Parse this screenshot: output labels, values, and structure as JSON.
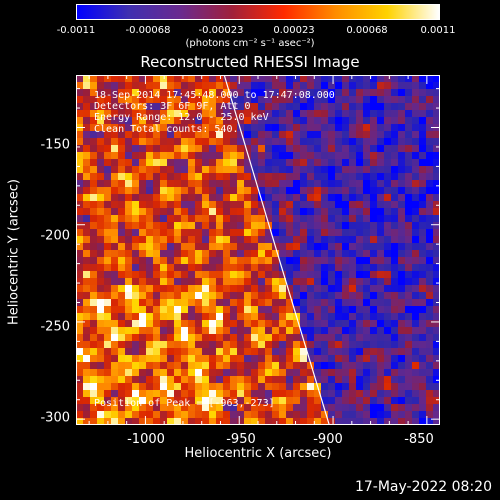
{
  "colorbar": {
    "ticks": [
      "-0.0011",
      "-0.00068",
      "-0.00023",
      "0.00023",
      "0.00068",
      "0.0011"
    ],
    "units": "(photons cm⁻² s⁻¹ asec⁻²)",
    "colors": [
      "#0000ff",
      "#3f2fb0",
      "#6a2a8f",
      "#a0203a",
      "#ff2a00",
      "#ff8c00",
      "#ffd200",
      "#ffffff"
    ]
  },
  "chart_data": {
    "type": "heatmap",
    "title": "Reconstructed RHESSI Image",
    "xlabel": "Heliocentric X (arcsec)",
    "ylabel": "Heliocentric Y (arcsec)",
    "xlim": [
      -1037,
      -843
    ],
    "ylim": [
      -303,
      -123
    ],
    "x_ticks": [
      "-1000",
      "-950",
      "-900",
      "-850"
    ],
    "y_ticks": [
      "-150",
      "-200",
      "-250",
      "-300"
    ],
    "annotations": {
      "line1": "18-Sep-2014 17:45:48.000 to 17:47:08.000",
      "line2": "Detectors: 3F 6F 9F, Att 0",
      "line3": "Energy Range: 12.0 - 25.0 keV",
      "line4": "Clean     Total counts: 540.",
      "peak": "Position of Peak = [-963,-273]"
    },
    "limb": {
      "x": [
        -958,
        -928,
        -902
      ],
      "y": [
        -123,
        -220,
        -303
      ]
    }
  },
  "footer": "17-May-2022 08:20"
}
